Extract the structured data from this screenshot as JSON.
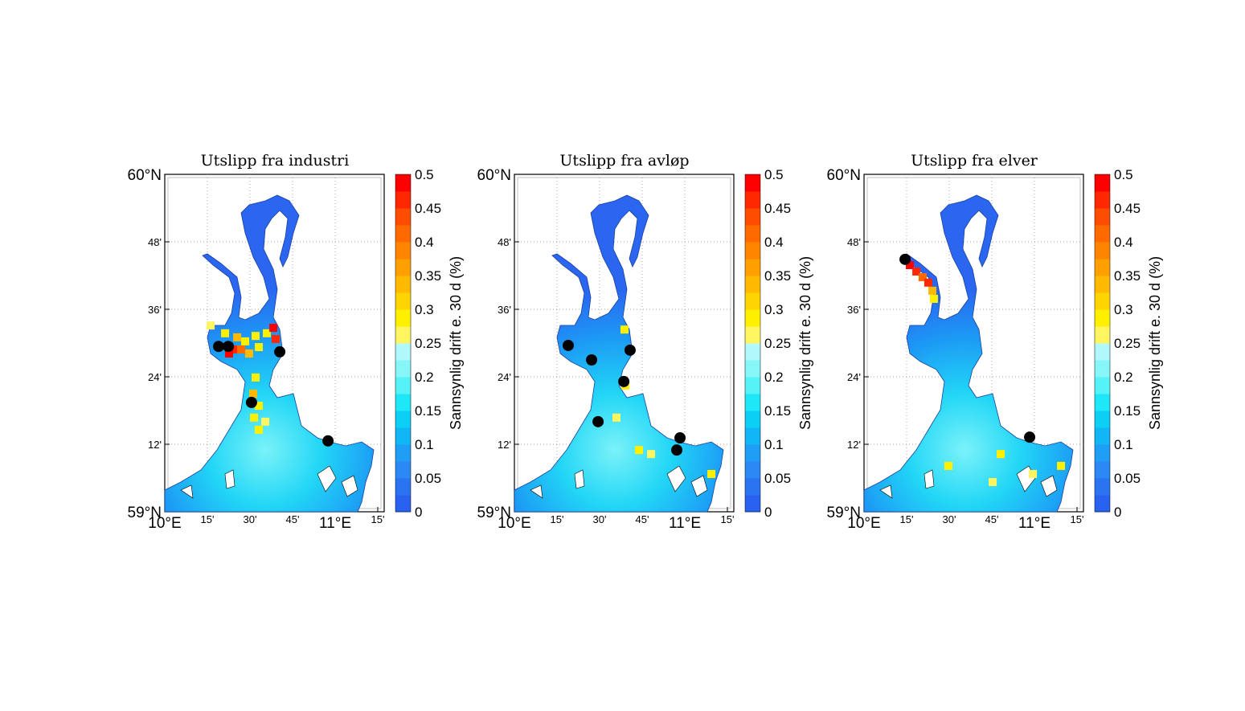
{
  "chart_data": {
    "type": "heatmap",
    "colorbar": {
      "label": "Sannsynlig drift e. 30 d (%)",
      "range": [
        0,
        0.5
      ],
      "step": 0.025,
      "tick_labels": [
        "0",
        "0.05",
        "0.1",
        "0.15",
        "0.2",
        "0.25",
        "0.3",
        "0.35",
        "0.4",
        "0.45",
        "0.5"
      ],
      "tick_values": [
        0,
        0.05,
        0.1,
        0.15,
        0.2,
        0.25,
        0.3,
        0.35,
        0.4,
        0.45,
        0.5
      ],
      "colors": [
        "#2962f0",
        "#2a74f2",
        "#2b88f4",
        "#1f9ef6",
        "#10b6f6",
        "#0ccff5",
        "#1ee8f7",
        "#55f2f8",
        "#86f6f9",
        "#b0f8fb",
        "#fff560",
        "#fff000",
        "#ffd400",
        "#ffba00",
        "#ffa000",
        "#ff8500",
        "#ff6a00",
        "#ff4d00",
        "#ff2800",
        "#ff0000"
      ]
    },
    "x_ticks": {
      "values": [
        10,
        10.25,
        10.5,
        10.75,
        11,
        11.25
      ],
      "labels": [
        "10°E",
        "15'",
        "30'",
        "45'",
        "11°E",
        "15'"
      ]
    },
    "y_ticks": {
      "values": [
        59,
        59.2,
        59.4,
        59.6,
        59.8,
        60
      ],
      "labels": [
        "59°N",
        "12'",
        "24'",
        "36'",
        "48'",
        "60°N"
      ]
    },
    "xlim": [
      10,
      11.29
    ],
    "ylim": [
      59,
      60
    ],
    "panels": [
      {
        "title": "Utslipp fra industri",
        "sources": [
          [
            10.316,
            59.49
          ],
          [
            10.373,
            59.49
          ],
          [
            10.675,
            59.474
          ],
          [
            10.509,
            59.324
          ],
          [
            10.958,
            59.21
          ]
        ],
        "hotspots": [
          [
            10.354,
            59.529,
            0.3
          ],
          [
            10.425,
            59.517,
            0.35
          ],
          [
            10.472,
            59.505,
            0.3
          ],
          [
            10.533,
            59.521,
            0.28
          ],
          [
            10.401,
            59.481,
            0.45
          ],
          [
            10.448,
            59.481,
            0.4
          ],
          [
            10.495,
            59.469,
            0.35
          ],
          [
            10.552,
            59.488,
            0.3
          ],
          [
            10.599,
            59.529,
            0.3
          ],
          [
            10.637,
            59.545,
            0.5
          ],
          [
            10.651,
            59.512,
            0.45
          ],
          [
            10.377,
            59.469,
            0.5
          ],
          [
            10.533,
            59.398,
            0.28
          ],
          [
            10.519,
            59.35,
            0.35
          ],
          [
            10.552,
            59.314,
            0.3
          ],
          [
            10.524,
            59.279,
            0.3
          ],
          [
            10.552,
            59.243,
            0.28
          ],
          [
            10.59,
            59.267,
            0.27
          ],
          [
            10.269,
            59.552,
            0.27
          ]
        ]
      },
      {
        "title": "Utslipp fra avløp",
        "sources": [
          [
            10.316,
            59.493
          ],
          [
            10.453,
            59.45
          ],
          [
            10.679,
            59.479
          ],
          [
            10.642,
            59.386
          ],
          [
            10.491,
            59.267
          ],
          [
            10.972,
            59.219
          ],
          [
            10.953,
            59.183
          ]
        ],
        "hotspots": [
          [
            10.646,
            59.54,
            0.3
          ],
          [
            10.651,
            59.374,
            0.28
          ],
          [
            10.599,
            59.279,
            0.27
          ],
          [
            10.731,
            59.183,
            0.28
          ],
          [
            11.156,
            59.112,
            0.3
          ],
          [
            10.802,
            59.171,
            0.27
          ]
        ]
      },
      {
        "title": "Utslipp fra elver",
        "sources": [
          [
            10.241,
            59.748
          ],
          [
            10.972,
            59.221
          ]
        ],
        "hotspots": [
          [
            10.269,
            59.731,
            0.5
          ],
          [
            10.307,
            59.712,
            0.45
          ],
          [
            10.344,
            59.695,
            0.4
          ],
          [
            10.377,
            59.679,
            0.45
          ],
          [
            10.401,
            59.655,
            0.35
          ],
          [
            10.41,
            59.631,
            0.3
          ],
          [
            10.495,
            59.136,
            0.28
          ],
          [
            10.802,
            59.171,
            0.28
          ],
          [
            10.991,
            59.112,
            0.27
          ],
          [
            11.156,
            59.136,
            0.3
          ],
          [
            10.755,
            59.088,
            0.27
          ]
        ]
      }
    ]
  }
}
